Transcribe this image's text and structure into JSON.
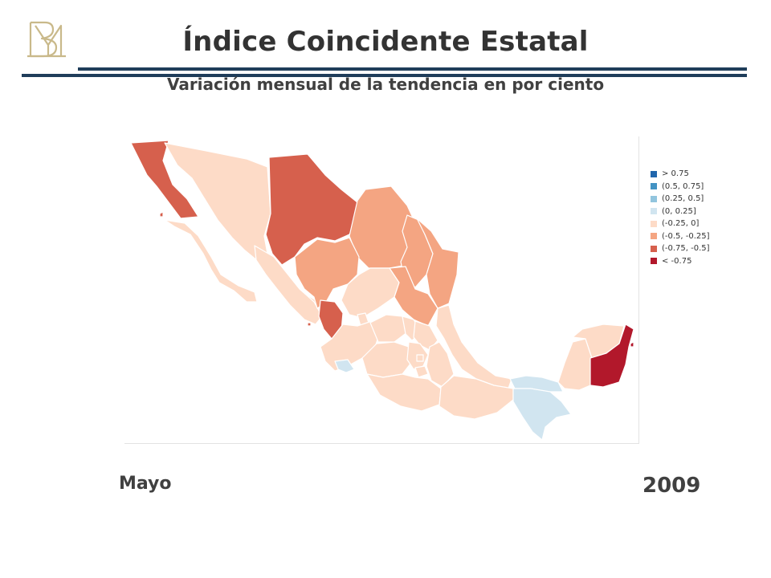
{
  "header": {
    "title": "Índice Coincidente Estatal",
    "subtitle": "Variación mensual de la tendencia en por ciento"
  },
  "colors": {
    "rule": "#1f3d5a",
    "bin_gt_075": "#2166ac",
    "bin_05_075": "#4393c3",
    "bin_025_05": "#92c5de",
    "bin_0_025": "#d1e5f0",
    "bin_m025_0": "#fddbc7",
    "bin_m05_m025": "#f4a582",
    "bin_m075_m05": "#d6604d",
    "bin_lt_m075": "#b2182b"
  },
  "legend": {
    "items": [
      {
        "label": "> 0.75",
        "color": "#2166ac"
      },
      {
        "label": "(0.5, 0.75]",
        "color": "#4393c3"
      },
      {
        "label": "(0.25, 0.5]",
        "color": "#92c5de"
      },
      {
        "label": "(0, 0.25]",
        "color": "#d1e5f0"
      },
      {
        "label": "(-0.25, 0]",
        "color": "#fddbc7"
      },
      {
        "label": "(-0.5, -0.25]",
        "color": "#f4a582"
      },
      {
        "label": "(-0.75, -0.5]",
        "color": "#d6604d"
      },
      {
        "label": "< -0.75",
        "color": "#b2182b"
      }
    ]
  },
  "period": {
    "month": "Mayo",
    "year": "2009"
  }
}
